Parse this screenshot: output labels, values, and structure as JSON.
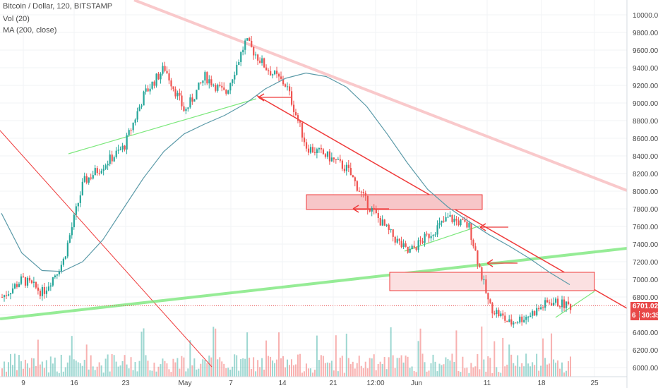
{
  "legend": {
    "title": "Bitcoin / Dollar, 120, BITSTAMP",
    "vol": "Vol (20)",
    "ma": "MA (200, close)"
  },
  "price_tag": {
    "value": "6701.02",
    "timer": "30:35",
    "partial": "6"
  },
  "colors": {
    "up": "#26a69a",
    "down": "#ef5350",
    "ma": "#5b9aa8",
    "support": "#7de87d",
    "resistance": "#ef3b3b",
    "zone_fill": "#f7c6c8",
    "long_trend": "#f9c9cb",
    "tag_bg": "#e84848"
  },
  "chart_data": {
    "type": "candlestick",
    "title": "Bitcoin / Dollar, 120, BITSTAMP",
    "ylim": [
      5900,
      10100
    ],
    "yticks": [
      6000,
      6200,
      6400,
      6600,
      6800,
      7000,
      7200,
      7400,
      7600,
      7800,
      8000,
      8200,
      8400,
      8600,
      8800,
      9000,
      9200,
      9400,
      9600,
      9800,
      10000
    ],
    "xticks": [
      "9",
      "16",
      "23",
      "May",
      "7",
      "14",
      "21",
      "12:00",
      "Jun",
      "11",
      "18",
      "25"
    ],
    "last_price": 6701.02,
    "series": [
      {
        "name": "MA (200, close)",
        "close": [
          7750,
          7300,
          7100,
          7090,
          7200,
          7450,
          7800,
          8150,
          8450,
          8650,
          8760,
          8860,
          8990,
          9160,
          9280,
          9340,
          9300,
          9180,
          8960,
          8650,
          8320,
          8020,
          7820,
          7660,
          7510,
          7380,
          7240,
          7080,
          6940
        ]
      },
      {
        "name": "price_path",
        "close": [
          6800,
          7000,
          6850,
          7200,
          8100,
          8300,
          8500,
          9100,
          9400,
          8900,
          9300,
          9100,
          9700,
          9400,
          9200,
          8500,
          8400,
          8250,
          7850,
          7550,
          7300,
          7500,
          7700,
          7600,
          6700,
          6500,
          6600,
          6750,
          6700
        ]
      }
    ],
    "annotations": [
      {
        "type": "trendline",
        "color": "support",
        "from": [
          5,
          6650
        ],
        "to": [
          155,
          7300
        ]
      },
      {
        "type": "trendline",
        "color": "resistance",
        "from": [
          5,
          8700
        ],
        "to": [
          120,
          5900
        ]
      },
      {
        "type": "zone",
        "from": [
          5,
          7950
        ],
        "to": [
          120,
          7780
        ]
      },
      {
        "type": "zone",
        "from": [
          5,
          7080
        ],
        "to": [
          120,
          6880
        ]
      }
    ]
  }
}
